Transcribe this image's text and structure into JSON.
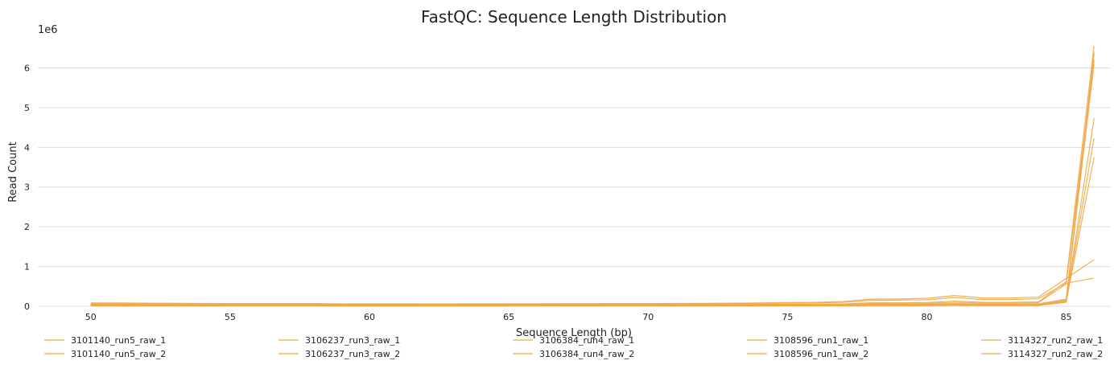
{
  "chart_data": {
    "type": "line",
    "title": "FastQC: Sequence Length Distribution",
    "xlabel": "Sequence Length (bp)",
    "ylabel": "Read Count",
    "y_offset_label": "1e6",
    "xlim": [
      48.1,
      86.6
    ],
    "ylim": [
      0,
      6900000
    ],
    "xticks": [
      50,
      55,
      60,
      65,
      70,
      75,
      80,
      85
    ],
    "yticks": [
      0,
      1000000,
      2000000,
      3000000,
      4000000,
      5000000,
      6000000
    ],
    "ytick_labels": [
      "0",
      "1",
      "2",
      "3",
      "4",
      "5",
      "6"
    ],
    "grid": "horizontal",
    "legend_position": "bottom",
    "line_color": "#F0A848",
    "x": [
      50,
      51,
      52,
      53,
      54,
      55,
      56,
      57,
      58,
      59,
      60,
      61,
      62,
      63,
      64,
      65,
      66,
      67,
      68,
      69,
      70,
      71,
      72,
      73,
      74,
      75,
      76,
      77,
      78,
      79,
      80,
      81,
      82,
      83,
      84,
      85,
      86
    ],
    "series": [
      {
        "name": "3101140_run5_raw_1",
        "values": [
          85000,
          84000,
          80000,
          76000,
          72000,
          70000,
          70000,
          70000,
          70000,
          62000,
          60000,
          60000,
          61000,
          62000,
          63000,
          64000,
          65000,
          66000,
          67000,
          68000,
          70000,
          72000,
          74000,
          78000,
          85000,
          95000,
          100000,
          120000,
          180000,
          185000,
          200000,
          270000,
          210000,
          210000,
          230000,
          700000,
          1170000
        ]
      },
      {
        "name": "3101140_run5_raw_2",
        "values": [
          70000,
          69000,
          65000,
          62000,
          60000,
          58000,
          58000,
          58000,
          58000,
          52000,
          50000,
          50000,
          51000,
          52000,
          53000,
          54000,
          55000,
          56000,
          57000,
          58000,
          60000,
          62000,
          64000,
          66000,
          70000,
          78000,
          84000,
          100000,
          150000,
          155000,
          165000,
          220000,
          170000,
          170000,
          190000,
          580000,
          710000
        ]
      },
      {
        "name": "3106237_run3_raw_1",
        "values": [
          50000,
          49000,
          48000,
          46000,
          45000,
          44000,
          44000,
          44000,
          44000,
          42000,
          41000,
          41000,
          42000,
          42000,
          43000,
          43000,
          44000,
          44000,
          45000,
          45000,
          46000,
          46000,
          47000,
          47000,
          48000,
          50000,
          52000,
          60000,
          90000,
          92000,
          95000,
          130000,
          100000,
          100000,
          110000,
          620000,
          6550000
        ]
      },
      {
        "name": "3106237_run3_raw_2",
        "values": [
          40000,
          39000,
          38000,
          37000,
          36000,
          35000,
          35000,
          35000,
          35000,
          33000,
          32000,
          32000,
          33000,
          33000,
          34000,
          34000,
          35000,
          35000,
          36000,
          36000,
          37000,
          37000,
          38000,
          38000,
          39000,
          40000,
          42000,
          48000,
          70000,
          72000,
          75000,
          100000,
          80000,
          80000,
          90000,
          560000,
          6200000
        ]
      },
      {
        "name": "3106384_run4_raw_1",
        "values": [
          30000,
          30000,
          29000,
          28000,
          28000,
          27000,
          27000,
          27000,
          27000,
          26000,
          25000,
          25000,
          26000,
          26000,
          26000,
          27000,
          27000,
          27000,
          28000,
          28000,
          28000,
          29000,
          29000,
          29000,
          30000,
          31000,
          32000,
          36000,
          50000,
          51000,
          53000,
          70000,
          55000,
          55000,
          60000,
          180000,
          6350000
        ]
      },
      {
        "name": "3106384_run4_raw_2",
        "values": [
          25000,
          25000,
          24000,
          23000,
          23000,
          22000,
          22000,
          22000,
          22000,
          21000,
          20000,
          20000,
          21000,
          21000,
          21000,
          22000,
          22000,
          22000,
          23000,
          23000,
          23000,
          24000,
          24000,
          24000,
          25000,
          26000,
          27000,
          30000,
          42000,
          43000,
          45000,
          60000,
          47000,
          47000,
          52000,
          160000,
          6100000
        ]
      },
      {
        "name": "3108596_run1_raw_1",
        "values": [
          20000,
          20000,
          19000,
          19000,
          18000,
          18000,
          18000,
          18000,
          18000,
          17000,
          16000,
          16000,
          17000,
          17000,
          17000,
          17000,
          18000,
          18000,
          18000,
          18000,
          19000,
          19000,
          19000,
          19000,
          20000,
          21000,
          22000,
          25000,
          35000,
          36000,
          38000,
          50000,
          39000,
          39000,
          42000,
          140000,
          4730000
        ]
      },
      {
        "name": "3108596_run1_raw_2",
        "values": [
          15000,
          15000,
          15000,
          14000,
          14000,
          14000,
          14000,
          14000,
          14000,
          13000,
          12000,
          12000,
          13000,
          13000,
          13000,
          13000,
          14000,
          14000,
          14000,
          14000,
          14000,
          15000,
          15000,
          15000,
          15000,
          16000,
          17000,
          19000,
          27000,
          28000,
          29000,
          38000,
          30000,
          30000,
          32000,
          120000,
          4230000
        ]
      },
      {
        "name": "3114327_run2_raw_1",
        "values": [
          12000,
          12000,
          12000,
          11000,
          11000,
          11000,
          11000,
          11000,
          11000,
          10000,
          10000,
          10000,
          10000,
          10000,
          10000,
          11000,
          11000,
          11000,
          11000,
          11000,
          11000,
          12000,
          12000,
          12000,
          12000,
          13000,
          13000,
          15000,
          20000,
          21000,
          22000,
          30000,
          23000,
          23000,
          25000,
          110000,
          3750000
        ]
      },
      {
        "name": "3114327_run2_raw_2",
        "values": [
          10000,
          10000,
          10000,
          9000,
          9000,
          9000,
          9000,
          9000,
          9000,
          8000,
          8000,
          8000,
          8000,
          8000,
          8000,
          9000,
          9000,
          9000,
          9000,
          9000,
          9000,
          10000,
          10000,
          10000,
          10000,
          11000,
          11000,
          12000,
          16000,
          17000,
          18000,
          24000,
          18000,
          18000,
          20000,
          100000,
          6400000
        ]
      }
    ]
  }
}
